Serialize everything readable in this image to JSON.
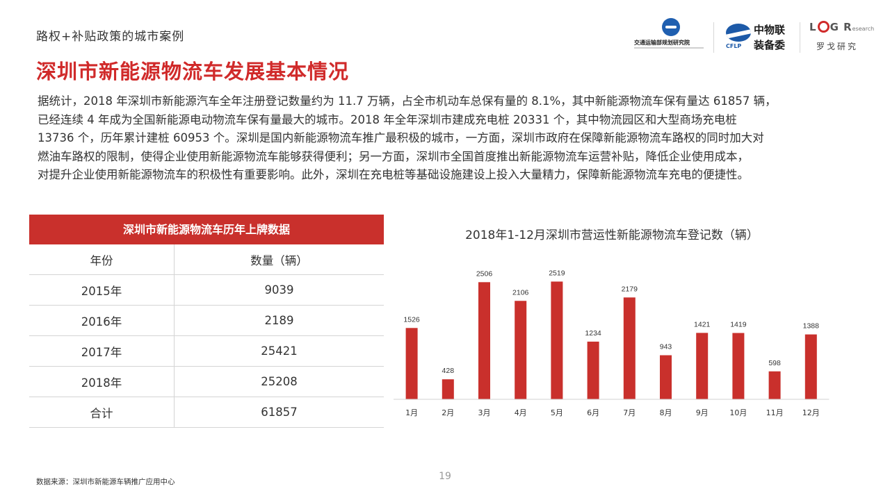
{
  "header": {
    "subtitle": "路权+补贴政策的城市案例",
    "title": "深圳市新能源物流车发展基本情况"
  },
  "logos": {
    "logo1_text": "交通运输部规划研究院",
    "logo2_line1": "中物联",
    "logo2_line2": "装备委",
    "logo2_abbr": "CFLP",
    "logo3_mark_L": "L",
    "logo3_mark_G": "G",
    "logo3_mark_R": "R",
    "logo3_mark_small": "esearch",
    "logo3_text": "罗戈研究"
  },
  "body": {
    "lines": [
      "据统计，2018 年深圳市新能源汽车全年注册登记数量约为 11.7 万辆，占全市机动车总保有量的 8.1%，其中新能源物流车保有量达 61857 辆，",
      "已经连续 4 年成为全国新能源电动物流车保有量最大的城市。2018 年全年深圳市建成充电桩 20331 个，其中物流园区和大型商场充电桩",
      "13736 个，历年累计建桩 60953 个。深圳是国内新能源物流车推广最积极的城市，一方面，深圳市政府在保障新能源物流车路权的同时加大对",
      "燃油车路权的限制，使得企业使用新能源物流车能够获得便利；另一方面，深圳市全国首度推出新能源物流车运营补贴，降低企业使用成本，",
      "对提升企业使用新能源物流车的积极性有重要影响。此外，深圳在充电桩等基础设施建设上投入大量精力，保障新能源物流车充电的便捷性。"
    ]
  },
  "table": {
    "title": "深圳市新能源物流车历年上牌数据",
    "headers": [
      "年份",
      "数量（辆）"
    ],
    "rows": [
      [
        "2015年",
        "9039"
      ],
      [
        "2016年",
        "2189"
      ],
      [
        "2017年",
        "25421"
      ],
      [
        "2018年",
        "25208"
      ],
      [
        "合计",
        "61857"
      ]
    ]
  },
  "chart_data": {
    "type": "bar",
    "title": "2018年1-12月深圳市营运性新能源物流车登记数（辆）",
    "categories": [
      "1月",
      "2月",
      "3月",
      "4月",
      "5月",
      "6月",
      "7月",
      "8月",
      "9月",
      "10月",
      "11月",
      "12月"
    ],
    "values": [
      1526,
      428,
      2506,
      2106,
      2519,
      1234,
      2179,
      943,
      1421,
      1419,
      598,
      1388
    ],
    "xlabel": "",
    "ylabel": "",
    "ylim": [
      0,
      2600
    ],
    "grid": false,
    "legend": "none",
    "bar_color": "#c9302c"
  },
  "footer": {
    "source": "数据来源：深圳市新能源车辆推广应用中心",
    "page_number": "19"
  }
}
